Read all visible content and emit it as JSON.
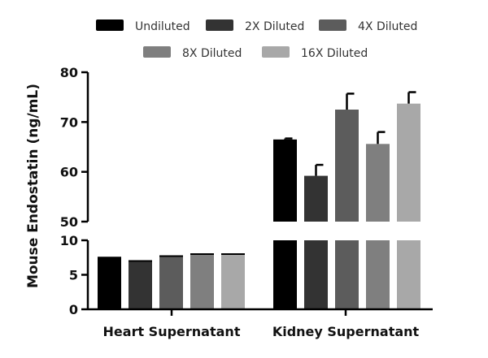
{
  "chart_data": {
    "type": "bar",
    "ylabel": "Mouse Endostatin (ng/mL)",
    "categories": [
      "Heart Supernatant",
      "Kidney Supernatant"
    ],
    "y_axis": "broken",
    "segments": [
      {
        "range": [
          0,
          10
        ],
        "ticks": [
          0,
          5,
          10
        ]
      },
      {
        "range": [
          50,
          80
        ],
        "ticks": [
          50,
          60,
          70,
          80
        ]
      }
    ],
    "legend_position": "top",
    "series": [
      {
        "name": "Undiluted",
        "color": "#000000",
        "values": [
          7.5,
          66.5
        ],
        "errors": [
          0.1,
          0.2
        ]
      },
      {
        "name": "2X Diluted",
        "color": "#333333",
        "values": [
          7.0,
          59.2
        ],
        "errors": [
          0.1,
          2.2
        ]
      },
      {
        "name": "4X Diluted",
        "color": "#5c5c5c",
        "values": [
          7.7,
          72.5
        ],
        "errors": [
          0.1,
          3.2
        ]
      },
      {
        "name": "8X Diluted",
        "color": "#7f7f7f",
        "values": [
          8.0,
          65.6
        ],
        "errors": [
          0.1,
          2.4
        ]
      },
      {
        "name": "16X Diluted",
        "color": "#a8a8a8",
        "values": [
          8.0,
          73.7
        ],
        "errors": [
          0.1,
          2.3
        ]
      }
    ]
  }
}
